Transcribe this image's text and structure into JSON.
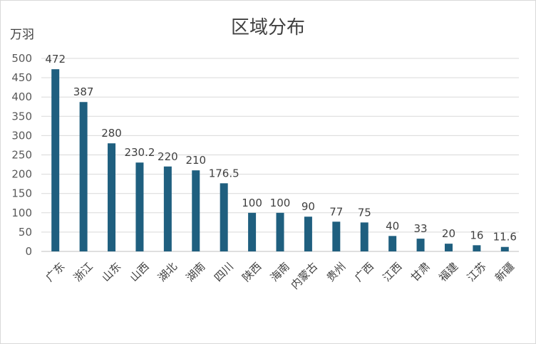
{
  "chart_data": {
    "type": "bar",
    "title": "区域分布",
    "ylabel": "万羽",
    "xlabel": "",
    "ylim": [
      0,
      500
    ],
    "yticks": [
      0,
      50,
      100,
      150,
      200,
      250,
      300,
      350,
      400,
      450,
      500
    ],
    "grid": true,
    "legend": "none",
    "categories": [
      "广东",
      "浙江",
      "山东",
      "山西",
      "湖北",
      "湖南",
      "四川",
      "陕西",
      "海南",
      "内蒙古",
      "贵州",
      "广西",
      "江西",
      "甘肃",
      "福建",
      "江苏",
      "新疆"
    ],
    "values": [
      472,
      387,
      280,
      230.2,
      220,
      210,
      176.5,
      100,
      100,
      90,
      77,
      75,
      40,
      33,
      20,
      16,
      11.6
    ],
    "data_labels": [
      "472",
      "387",
      "280",
      "230.2",
      "220",
      "210",
      "176.5",
      "100",
      "100",
      "90",
      "77",
      "75",
      "40",
      "33",
      "20",
      "16",
      "11.6"
    ],
    "bar_color": "#1f5f7f",
    "grid_color": "#d9d9d9",
    "axis_color": "#bfbfbf"
  }
}
